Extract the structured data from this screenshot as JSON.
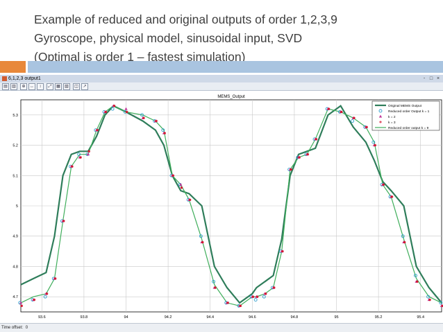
{
  "slide": {
    "title_lines": [
      "Example of reduced and original outputs of order 1,2,3,9",
      "Gyroscope, physical model, sinusoidal input, SVD",
      "(Optimal is order 1 – fastest simulation)"
    ]
  },
  "window": {
    "title": "6,1,2,3 output1",
    "buttons": [
      "-",
      "□",
      "×"
    ]
  },
  "status": {
    "time_offset_label": "Time offset:",
    "time_offset_value": "0"
  },
  "chart_data": {
    "type": "line",
    "title": "MEMS_Output",
    "xlim": [
      93.5,
      95.5
    ],
    "ylim": [
      4.65,
      5.35
    ],
    "x_ticks": [
      "93.6",
      "93.8",
      "94",
      "94.2",
      "94.4",
      "94.6",
      "94.8",
      "95",
      "95.2",
      "95.4"
    ],
    "y_ticks": [
      "4.7",
      "4.8",
      "4.9",
      "5",
      "5.1",
      "5.2",
      "5.3"
    ],
    "grid": true,
    "legend_position": "top-right",
    "colors": {
      "original": "#2e7d5a",
      "order1": "#2f9fcf",
      "order2": "#c0399a",
      "order3": "#d4152e",
      "order9": "#3fae5b"
    },
    "series": [
      {
        "name": "Original MEMS Output",
        "x": [
          93.5,
          93.56,
          93.62,
          93.66,
          93.7,
          93.74,
          93.78,
          93.82,
          93.86,
          93.9,
          93.94,
          94.0,
          94.08,
          94.14,
          94.18,
          94.22,
          94.26,
          94.3,
          94.36,
          94.42,
          94.48,
          94.54,
          94.6,
          94.62,
          94.66,
          94.7,
          94.74,
          94.78,
          94.82,
          94.86,
          94.9,
          94.96,
          95.02,
          95.08,
          95.14,
          95.18,
          95.22,
          95.26,
          95.32,
          95.38,
          95.44,
          95.5
        ],
        "y": [
          4.74,
          4.76,
          4.78,
          4.9,
          5.1,
          5.17,
          5.18,
          5.18,
          5.23,
          5.3,
          5.33,
          5.31,
          5.28,
          5.25,
          5.2,
          5.1,
          5.05,
          5.04,
          5.0,
          4.8,
          4.73,
          4.68,
          4.71,
          4.73,
          4.75,
          4.77,
          4.89,
          5.1,
          5.17,
          5.18,
          5.19,
          5.3,
          5.33,
          5.26,
          5.21,
          5.15,
          5.08,
          5.05,
          5.0,
          4.8,
          4.73,
          4.68
        ]
      },
      {
        "name": "Reduced order Output k = 1",
        "x": [
          93.5,
          93.56,
          93.62,
          93.66,
          93.7,
          93.74,
          93.78,
          93.82,
          93.86,
          93.9,
          93.94,
          94.0,
          94.08,
          94.14,
          94.18,
          94.22,
          94.26,
          94.3,
          94.36,
          94.42,
          94.48,
          94.54,
          94.6,
          94.62,
          94.66,
          94.7,
          94.74,
          94.78,
          94.82,
          94.86,
          94.9,
          94.96,
          95.02,
          95.08,
          95.14,
          95.18,
          95.22,
          95.26,
          95.32,
          95.38,
          95.44,
          95.5
        ],
        "y": [
          4.68,
          4.69,
          4.7,
          4.76,
          4.95,
          5.13,
          5.17,
          5.17,
          5.25,
          5.31,
          5.32,
          5.31,
          5.3,
          5.28,
          5.25,
          5.1,
          5.07,
          5.02,
          4.9,
          4.75,
          4.68,
          4.67,
          4.7,
          4.69,
          4.7,
          4.73,
          4.85,
          5.12,
          5.16,
          5.17,
          5.22,
          5.32,
          5.31,
          5.28,
          5.26,
          5.21,
          5.07,
          5.03,
          4.9,
          4.77,
          4.7,
          4.68
        ]
      },
      {
        "name": "k = 2",
        "x": [
          93.5,
          93.56,
          93.62,
          93.66,
          93.7,
          93.74,
          93.78,
          93.82,
          93.86,
          93.9,
          93.94,
          94.0,
          94.08,
          94.14,
          94.18,
          94.22,
          94.26,
          94.3,
          94.36,
          94.42,
          94.48,
          94.54,
          94.6,
          94.62,
          94.66,
          94.7,
          94.74,
          94.78,
          94.82,
          94.86,
          94.9,
          94.96,
          95.02,
          95.08,
          95.14,
          95.18,
          95.22,
          95.26,
          95.32,
          95.38,
          95.44,
          95.5
        ],
        "y": [
          4.68,
          4.69,
          4.71,
          4.76,
          4.95,
          5.13,
          5.16,
          5.17,
          5.25,
          5.31,
          5.33,
          5.32,
          5.29,
          5.28,
          5.24,
          5.1,
          5.07,
          5.02,
          4.88,
          4.73,
          4.68,
          4.67,
          4.7,
          4.7,
          4.71,
          4.73,
          4.85,
          5.12,
          5.16,
          5.17,
          5.22,
          5.32,
          5.31,
          5.29,
          5.26,
          5.2,
          5.07,
          5.03,
          4.88,
          4.75,
          4.69,
          4.67
        ]
      },
      {
        "name": "k = 3",
        "x": [
          93.5,
          93.56,
          93.62,
          93.66,
          93.7,
          93.74,
          93.78,
          93.82,
          93.86,
          93.9,
          93.94,
          94.0,
          94.08,
          94.14,
          94.18,
          94.22,
          94.26,
          94.3,
          94.36,
          94.42,
          94.48,
          94.54,
          94.6,
          94.62,
          94.66,
          94.7,
          94.74,
          94.78,
          94.82,
          94.86,
          94.9,
          94.96,
          95.02,
          95.08,
          95.14,
          95.18,
          95.22,
          95.26,
          95.32,
          95.38,
          95.44,
          95.5
        ],
        "y": [
          4.67,
          4.69,
          4.71,
          4.76,
          4.95,
          5.13,
          5.16,
          5.18,
          5.25,
          5.31,
          5.33,
          5.31,
          5.29,
          5.28,
          5.24,
          5.1,
          5.06,
          5.02,
          4.88,
          4.73,
          4.68,
          4.67,
          4.7,
          4.7,
          4.71,
          4.73,
          4.85,
          5.12,
          5.16,
          5.17,
          5.22,
          5.32,
          5.31,
          5.29,
          5.26,
          5.2,
          5.07,
          5.03,
          4.88,
          4.75,
          4.69,
          4.67
        ]
      },
      {
        "name": "Reduced order output k = 9",
        "x": [
          93.5,
          93.56,
          93.62,
          93.66,
          93.7,
          93.74,
          93.78,
          93.82,
          93.86,
          93.9,
          93.94,
          94.0,
          94.08,
          94.14,
          94.18,
          94.22,
          94.26,
          94.3,
          94.36,
          94.42,
          94.48,
          94.54,
          94.6,
          94.62,
          94.66,
          94.7,
          94.74,
          94.78,
          94.82,
          94.86,
          94.9,
          94.96,
          95.02,
          95.08,
          95.14,
          95.18,
          95.22,
          95.26,
          95.32,
          95.38,
          95.44,
          95.5
        ],
        "y": [
          4.68,
          4.7,
          4.71,
          4.76,
          4.95,
          5.13,
          5.17,
          5.17,
          5.25,
          5.31,
          5.33,
          5.31,
          5.3,
          5.28,
          5.25,
          5.1,
          5.07,
          5.02,
          4.89,
          4.74,
          4.68,
          4.67,
          4.7,
          4.7,
          4.71,
          4.73,
          4.85,
          5.12,
          5.16,
          5.17,
          5.22,
          5.32,
          5.31,
          5.29,
          5.26,
          5.21,
          5.07,
          5.03,
          4.89,
          4.76,
          4.7,
          4.68
        ]
      }
    ]
  }
}
